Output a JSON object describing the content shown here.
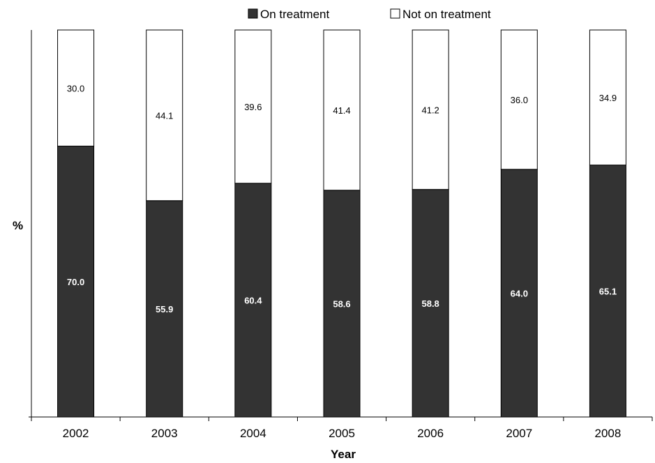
{
  "chart_data": {
    "type": "bar",
    "stacked": true,
    "categories": [
      "2002",
      "2003",
      "2004",
      "2005",
      "2006",
      "2007",
      "2008"
    ],
    "series": [
      {
        "name": "On treatment",
        "values": [
          70.0,
          55.9,
          60.4,
          58.6,
          58.8,
          64.0,
          65.1
        ],
        "color": "#333333"
      },
      {
        "name": "Not on treatment",
        "values": [
          30.0,
          44.1,
          39.6,
          41.4,
          41.2,
          36.0,
          34.9
        ],
        "color": "#ffffff"
      }
    ],
    "data_labels": {
      "On treatment": [
        "70.0",
        "55.9",
        "60.4",
        "58.6",
        "58.8",
        "64.0",
        "65.1"
      ],
      "Not on treatment": [
        "30.0",
        "44.1",
        "39.6",
        "41.4",
        "41.2",
        "36.0",
        "34.9"
      ]
    },
    "xlabel": "Year",
    "ylabel": "%",
    "ylim": [
      0,
      100
    ],
    "grid": false,
    "legend_position": "top"
  }
}
